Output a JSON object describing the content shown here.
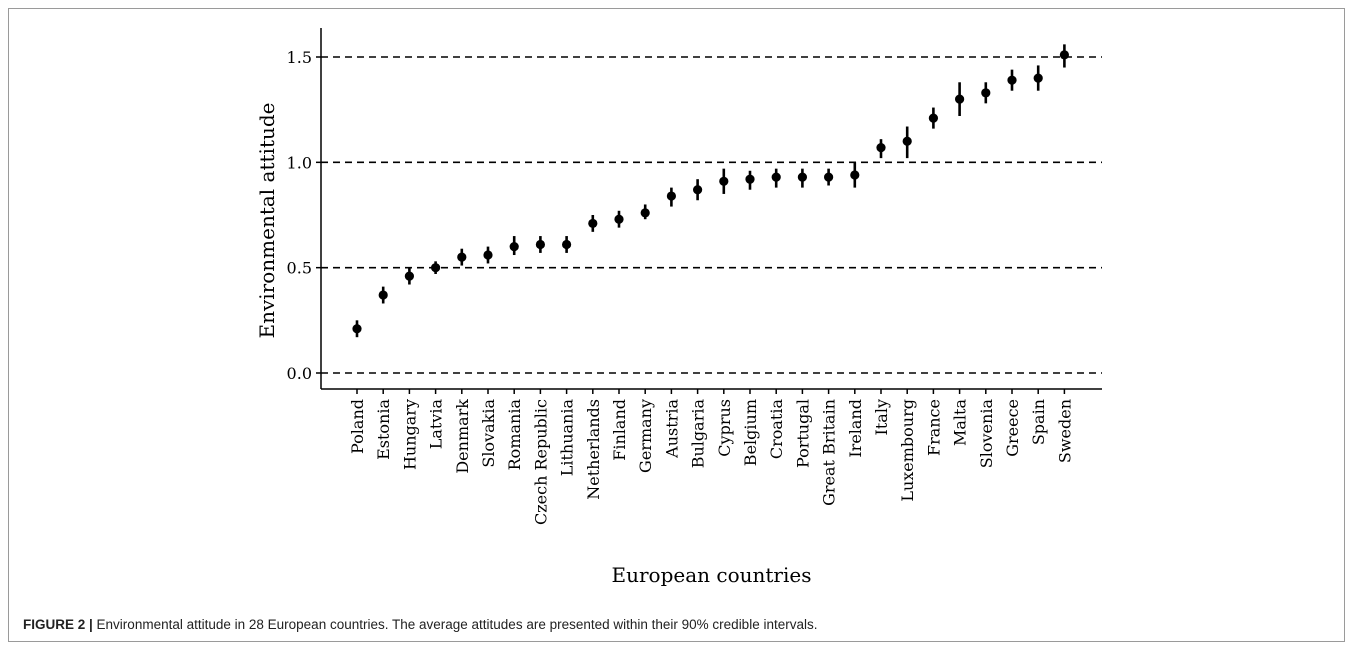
{
  "chart_data": {
    "type": "scatter",
    "xlabel": "European countries",
    "ylabel": "Environmental attitude",
    "ylim": [
      -0.08,
      1.62
    ],
    "yticks": [
      "0.0",
      "0.5",
      "1.0",
      "1.5"
    ],
    "ytick_values": [
      0.0,
      0.5,
      1.0,
      1.5
    ],
    "grid": "dashed horizontal lines at y ticks",
    "categories": [
      "Poland",
      "Estonia",
      "Hungary",
      "Latvia",
      "Denmark",
      "Slovakia",
      "Romania",
      "Czech Republic",
      "Lithuania",
      "Netherlands",
      "Finland",
      "Germany",
      "Austria",
      "Bulgaria",
      "Cyprus",
      "Belgium",
      "Croatia",
      "Portugal",
      "Great Britain",
      "Ireland",
      "Italy",
      "Luxembourg",
      "France",
      "Malta",
      "Slovenia",
      "Greece",
      "Spain",
      "Sweden"
    ],
    "values": [
      0.21,
      0.37,
      0.46,
      0.5,
      0.55,
      0.56,
      0.6,
      0.61,
      0.61,
      0.71,
      0.73,
      0.76,
      0.84,
      0.87,
      0.91,
      0.92,
      0.93,
      0.93,
      0.93,
      0.94,
      1.07,
      1.1,
      1.21,
      1.3,
      1.33,
      1.39,
      1.4,
      1.51
    ],
    "lower": [
      0.17,
      0.33,
      0.42,
      0.47,
      0.51,
      0.52,
      0.56,
      0.57,
      0.57,
      0.67,
      0.69,
      0.73,
      0.79,
      0.82,
      0.85,
      0.87,
      0.88,
      0.88,
      0.89,
      0.88,
      1.02,
      1.02,
      1.16,
      1.22,
      1.28,
      1.34,
      1.34,
      1.45
    ],
    "upper": [
      0.25,
      0.41,
      0.5,
      0.53,
      0.59,
      0.6,
      0.65,
      0.65,
      0.65,
      0.75,
      0.77,
      0.8,
      0.88,
      0.92,
      0.97,
      0.96,
      0.97,
      0.97,
      0.97,
      1.0,
      1.11,
      1.17,
      1.26,
      1.38,
      1.38,
      1.44,
      1.46,
      1.56
    ]
  },
  "caption": {
    "label": "FIGURE 2 |",
    "text": " Environmental attitude in 28 European countries. The average attitudes are presented within their 90% credible intervals."
  },
  "colors": {
    "points": "#000000",
    "grid": "#000000",
    "frame": "#9a9a9a"
  }
}
